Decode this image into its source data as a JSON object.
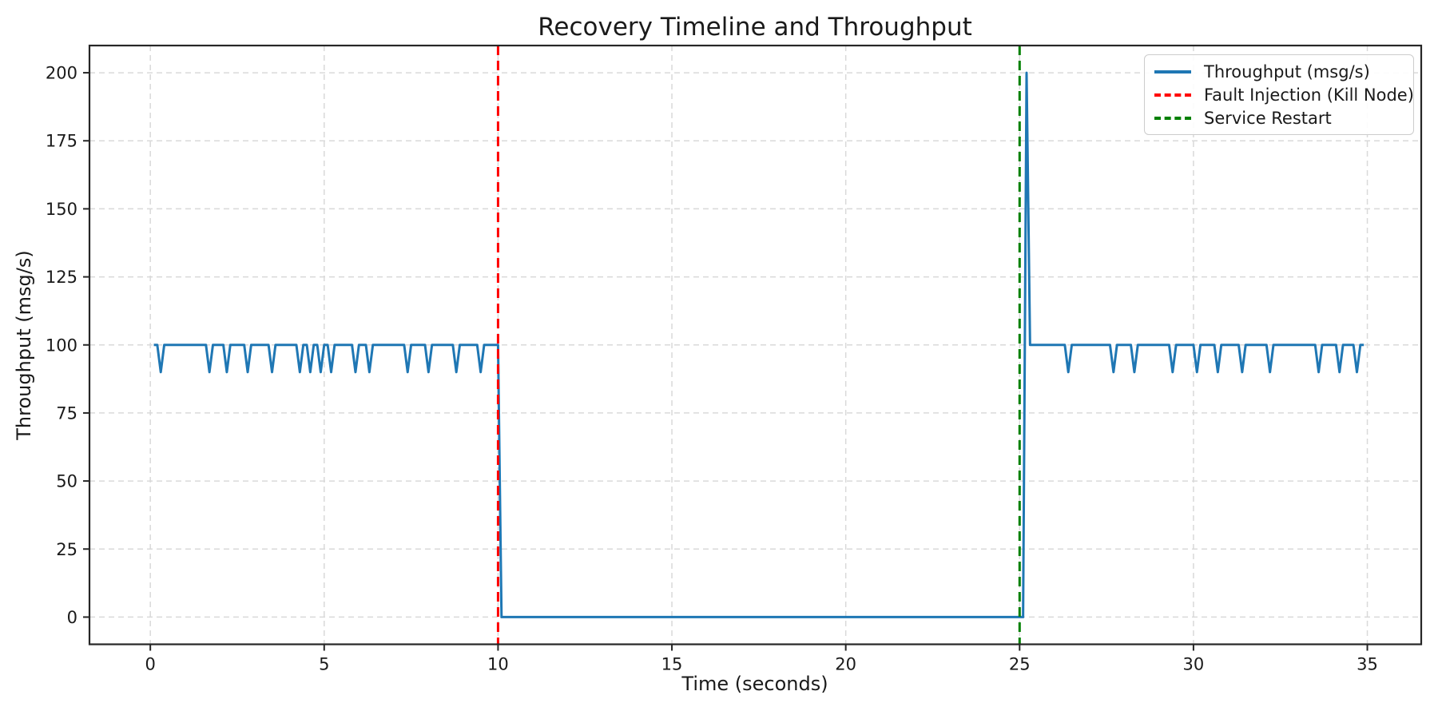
{
  "chart_data": {
    "type": "line",
    "title": "Recovery Timeline and Throughput",
    "xlabel": "Time (seconds)",
    "ylabel": "Throughput (msg/s)",
    "xlim": [
      -1.75,
      36.55
    ],
    "ylim": [
      -10,
      210
    ],
    "xticks": [
      0,
      5,
      10,
      15,
      20,
      25,
      30,
      35
    ],
    "yticks": [
      0,
      25,
      50,
      75,
      100,
      125,
      150,
      175,
      200
    ],
    "grid": true,
    "grid_color": "#d9d9d9",
    "legend_position": "upper right",
    "series": [
      {
        "name": "Throughput (msg/s)",
        "color": "#1f77b4",
        "style": "solid",
        "line_width": 3,
        "sample_interval": 0.1,
        "segments": [
          {
            "t_start": 0.1,
            "t_end": 10.0,
            "base_value": 100,
            "dip_value": 90,
            "dip_times": [
              0.3,
              1.7,
              2.2,
              2.8,
              3.5,
              4.3,
              4.6,
              4.9,
              5.2,
              5.9,
              6.3,
              7.4,
              8.0,
              8.8,
              9.5
            ]
          },
          {
            "t_start": 10.1,
            "t_end": 25.1,
            "base_value": 0
          },
          {
            "t_start": 25.2,
            "t_end": 25.2,
            "base_value": 200
          },
          {
            "t_start": 25.3,
            "t_end": 34.9,
            "base_value": 100,
            "dip_value": 90,
            "dip_times": [
              26.4,
              27.7,
              28.3,
              29.4,
              30.1,
              30.7,
              31.4,
              32.2,
              33.6,
              34.2,
              34.7
            ]
          }
        ]
      }
    ],
    "vlines": [
      {
        "x": 10,
        "color": "#ff0000",
        "style": "dashed",
        "label": "Fault Injection (Kill Node)"
      },
      {
        "x": 25,
        "color": "#008000",
        "style": "dashed",
        "label": "Service Restart"
      }
    ]
  },
  "legend": {
    "entries": [
      {
        "label": "Throughput (msg/s)",
        "color": "#1f77b4",
        "style": "solid"
      },
      {
        "label": "Fault Injection (Kill Node)",
        "color": "#ff0000",
        "style": "dashed"
      },
      {
        "label": "Service Restart",
        "color": "#008000",
        "style": "dashed"
      }
    ]
  }
}
